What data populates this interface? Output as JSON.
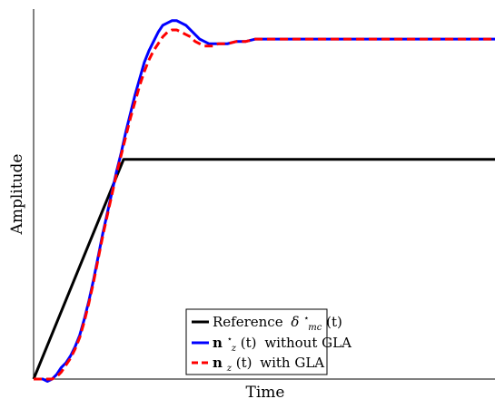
{
  "chart_data": {
    "type": "line",
    "title": "",
    "xlabel": "Time",
    "ylabel": "Amplitude",
    "x_ticks_shown": false,
    "y_ticks_shown": false,
    "grid": false,
    "legend_position": "bottom-center",
    "xlim": [
      0,
      10
    ],
    "ylim": [
      0,
      1.6
    ],
    "series": [
      {
        "key": "reference",
        "label_parts": {
          "text": "Reference",
          "symbol": "δ",
          "sup": "⋆",
          "sub": "mc",
          "arg": "(t)"
        },
        "color": "#000000",
        "style": "solid",
        "x": [
          0,
          1.95,
          10
        ],
        "y": [
          0,
          0.95,
          0.95
        ]
      },
      {
        "key": "without_gla",
        "label_parts": {
          "symbol": "n",
          "sup": "⋆",
          "sub": "z",
          "arg": "(t)",
          "text": "without GLA"
        },
        "color": "#0000ff",
        "style": "solid",
        "x": [
          0,
          0.2,
          0.3,
          0.4,
          0.5,
          0.6,
          0.7,
          0.8,
          0.9,
          1.0,
          1.1,
          1.2,
          1.3,
          1.4,
          1.5,
          1.6,
          1.7,
          1.8,
          1.9,
          2.0,
          2.1,
          2.2,
          2.3,
          2.4,
          2.5,
          2.6,
          2.7,
          2.8,
          2.9,
          3.0,
          3.1,
          3.2,
          3.3,
          3.4,
          3.5,
          3.6,
          3.7,
          3.8,
          3.9,
          4.0,
          4.2,
          4.4,
          4.6,
          4.8,
          5.0,
          5.3,
          5.6,
          6.0,
          6.5,
          7.0,
          7.5,
          8.0,
          8.5,
          9.0,
          9.5,
          10.0
        ],
        "y": [
          0,
          0.0,
          -0.01,
          0.0,
          0.02,
          0.05,
          0.07,
          0.1,
          0.14,
          0.19,
          0.26,
          0.34,
          0.43,
          0.53,
          0.63,
          0.72,
          0.81,
          0.9,
          0.98,
          1.07,
          1.15,
          1.23,
          1.3,
          1.37,
          1.42,
          1.46,
          1.5,
          1.53,
          1.54,
          1.55,
          1.55,
          1.54,
          1.53,
          1.51,
          1.49,
          1.47,
          1.46,
          1.45,
          1.45,
          1.45,
          1.45,
          1.46,
          1.46,
          1.47,
          1.47,
          1.47,
          1.47,
          1.47,
          1.47,
          1.47,
          1.47,
          1.47,
          1.47,
          1.47,
          1.47,
          1.47
        ]
      },
      {
        "key": "with_gla",
        "label_parts": {
          "symbol": "n",
          "sup": "",
          "sub": "z",
          "arg": "(t)",
          "text": "with GLA"
        },
        "color": "#ff0000",
        "style": "dashed",
        "x": [
          0,
          0.2,
          0.3,
          0.4,
          0.5,
          0.6,
          0.7,
          0.8,
          0.9,
          1.0,
          1.1,
          1.2,
          1.3,
          1.4,
          1.5,
          1.6,
          1.7,
          1.8,
          1.9,
          2.0,
          2.1,
          2.2,
          2.3,
          2.4,
          2.5,
          2.6,
          2.7,
          2.8,
          2.9,
          3.0,
          3.1,
          3.2,
          3.3,
          3.4,
          3.5,
          3.6,
          3.7,
          3.8,
          3.9,
          4.0,
          4.2,
          4.4,
          4.6,
          4.8,
          5.0,
          5.3,
          5.6,
          6.0,
          6.5,
          7.0,
          7.5,
          8.0,
          8.5,
          9.0,
          9.5,
          10.0
        ],
        "y": [
          0,
          0.0,
          0.0,
          0.0,
          0.01,
          0.03,
          0.06,
          0.09,
          0.13,
          0.18,
          0.25,
          0.33,
          0.42,
          0.52,
          0.62,
          0.71,
          0.8,
          0.89,
          0.97,
          1.05,
          1.13,
          1.2,
          1.27,
          1.33,
          1.38,
          1.42,
          1.45,
          1.48,
          1.5,
          1.51,
          1.51,
          1.5,
          1.49,
          1.48,
          1.46,
          1.45,
          1.44,
          1.44,
          1.44,
          1.45,
          1.45,
          1.46,
          1.46,
          1.47,
          1.47,
          1.47,
          1.47,
          1.47,
          1.47,
          1.47,
          1.47,
          1.47,
          1.47,
          1.47,
          1.47,
          1.47
        ]
      }
    ]
  }
}
